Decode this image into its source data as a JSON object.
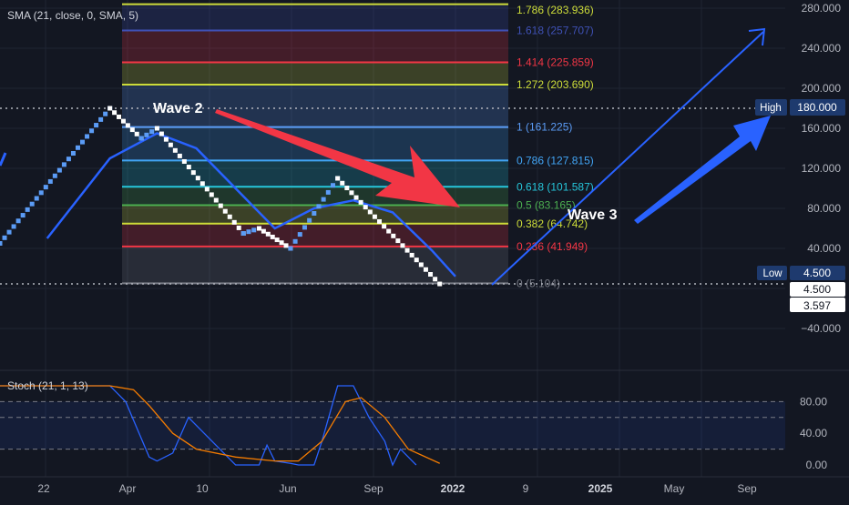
{
  "colors": {
    "background": "#131722",
    "grid": "#1f2433",
    "axis_text": "#b2b5be",
    "renko_up": "#5b9cf6",
    "renko_down": "#ffffff",
    "sma": "#2962ff",
    "stoch_k": "#2962ff",
    "stoch_d": "#f57c00",
    "wave2_arrow": "#f23645",
    "wave3_arrow": "#2962ff",
    "highlight_label_bg": "#1e3a6e"
  },
  "indicators": {
    "sma_label": "SMA (21, close, 0, SMA, 5)",
    "stoch_label": "Stoch (21, 1, 13)"
  },
  "annotations": {
    "wave2": "Wave 2",
    "wave3": "Wave 3"
  },
  "price_tags": {
    "high_label": "High",
    "high_value": "180.000",
    "low_label": "Low",
    "low_value": "4.500",
    "last_value": "4.500",
    "second_value": "3.597"
  },
  "chart_data": [
    {
      "type": "line",
      "y_axis_ticks": [
        "280.000",
        "240.000",
        "200.000",
        "160.000",
        "120.000",
        "80.000",
        "40.000",
        "−40.000"
      ],
      "ylim": [
        -60,
        285
      ],
      "x_axis_ticks": [
        "22",
        "Apr",
        "10",
        "Jun",
        "Sep",
        "2022",
        "9",
        "2025",
        "May",
        "Sep"
      ],
      "fibonacci_levels": [
        {
          "ratio": "1.786",
          "price": 283.936,
          "label": "1.786 (283.936)",
          "color": "#cddc39"
        },
        {
          "ratio": "1.618",
          "price": 257.707,
          "label": "1.618 (257.707)",
          "color": "#3f51b5"
        },
        {
          "ratio": "1.414",
          "price": 225.859,
          "label": "1.414 (225.859)",
          "color": "#f23645"
        },
        {
          "ratio": "1.272",
          "price": 203.69,
          "label": "1.272 (203.690)",
          "color": "#cddc39"
        },
        {
          "ratio": "1",
          "price": 161.225,
          "label": "1 (161.225)",
          "color": "#5b9cf6"
        },
        {
          "ratio": "0.786",
          "price": 127.815,
          "label": "0.786 (127.815)",
          "color": "#42a5f5"
        },
        {
          "ratio": "0.618",
          "price": 101.587,
          "label": "0.618 (101.587)",
          "color": "#26c6da"
        },
        {
          "ratio": "0.5",
          "price": 83.165,
          "label": "0.5 (83.165)",
          "color": "#4caf50"
        },
        {
          "ratio": "0.382",
          "price": 64.742,
          "label": "0.382 (64.742)",
          "color": "#cddc39"
        },
        {
          "ratio": "0.236",
          "price": 41.949,
          "label": "0.236 (41.949)",
          "color": "#f23645"
        },
        {
          "ratio": "0",
          "price": 5.104,
          "label": "0 (5.104)",
          "color": "#787b86"
        }
      ],
      "series": [
        {
          "name": "SMA (21, close, 0, SMA, 5)",
          "x": [
            0.06,
            0.1,
            0.14,
            0.2,
            0.25,
            0.3,
            0.35,
            0.4,
            0.45,
            0.5,
            0.55,
            0.58
          ],
          "values": [
            50,
            90,
            130,
            155,
            140,
            100,
            60,
            80,
            88,
            76,
            38,
            12
          ]
        },
        {
          "name": "renko",
          "x": [
            0.0,
            0.14,
            0.18,
            0.2,
            0.31,
            0.33,
            0.37,
            0.43,
            0.56
          ],
          "values": [
            45,
            180,
            150,
            160,
            55,
            60,
            40,
            110,
            4.5
          ]
        }
      ]
    },
    {
      "type": "line",
      "title": "Stoch (21, 1, 13)",
      "y_axis_ticks": [
        "80.00",
        "40.00",
        "0.00"
      ],
      "ylim": [
        0,
        100
      ],
      "bands": [
        80,
        60,
        20
      ],
      "series": [
        {
          "name": "%K",
          "x": [
            0.0,
            0.14,
            0.16,
            0.19,
            0.2,
            0.22,
            0.24,
            0.3,
            0.33,
            0.34,
            0.35,
            0.37,
            0.38,
            0.4,
            0.41,
            0.43,
            0.45,
            0.47,
            0.49,
            0.5,
            0.51,
            0.53
          ],
          "values": [
            100,
            100,
            80,
            10,
            5,
            15,
            60,
            0,
            0,
            25,
            5,
            2,
            0,
            0,
            30,
            100,
            100,
            60,
            30,
            0,
            20,
            0
          ]
        },
        {
          "name": "%D",
          "x": [
            0.0,
            0.14,
            0.17,
            0.19,
            0.22,
            0.25,
            0.3,
            0.35,
            0.38,
            0.41,
            0.44,
            0.46,
            0.49,
            0.52,
            0.56
          ],
          "values": [
            100,
            100,
            95,
            75,
            40,
            20,
            10,
            5,
            5,
            30,
            80,
            85,
            60,
            20,
            2
          ]
        }
      ]
    }
  ]
}
